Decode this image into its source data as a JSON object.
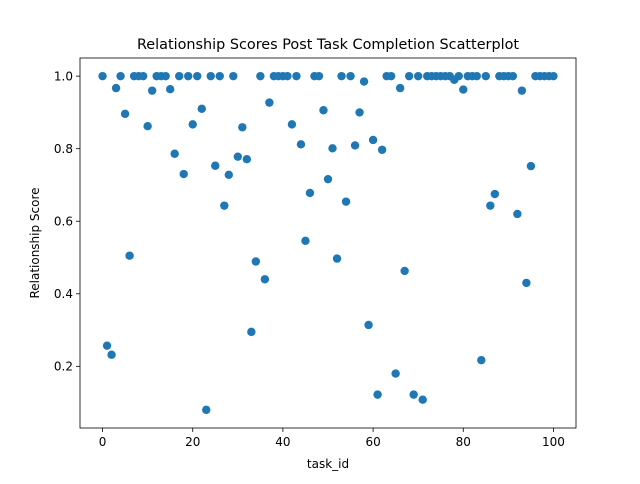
{
  "chart_data": {
    "type": "scatter",
    "title": "Relationship Scores Post Task Completion Scatterplot",
    "xlabel": "task_id",
    "ylabel": "Relationship Score",
    "xlim": [
      -5,
      105
    ],
    "ylim": [
      0.03,
      1.05
    ],
    "xticks": [
      0,
      20,
      40,
      60,
      80,
      100
    ],
    "yticks": [
      0.2,
      0.4,
      0.6,
      0.8,
      1.0
    ],
    "xtick_labels": [
      "0",
      "20",
      "40",
      "60",
      "80",
      "100"
    ],
    "ytick_labels": [
      "0.2",
      "0.4",
      "0.6",
      "0.8",
      "1.0"
    ],
    "grid": false,
    "marker_color": "#1f77b4",
    "series": [
      {
        "points": [
          [
            0,
            1.0
          ],
          [
            1,
            0.257
          ],
          [
            2,
            0.232
          ],
          [
            3,
            0.967
          ],
          [
            4,
            1.0
          ],
          [
            5,
            0.896
          ],
          [
            6,
            0.505
          ],
          [
            7,
            1.0
          ],
          [
            8,
            1.0
          ],
          [
            9,
            1.0
          ],
          [
            10,
            0.862
          ],
          [
            11,
            0.96
          ],
          [
            12,
            1.0
          ],
          [
            13,
            1.0
          ],
          [
            14,
            1.0
          ],
          [
            15,
            0.964
          ],
          [
            16,
            0.786
          ],
          [
            17,
            1.0
          ],
          [
            18,
            0.73
          ],
          [
            19,
            1.0
          ],
          [
            20,
            0.867
          ],
          [
            21,
            1.0
          ],
          [
            22,
            0.91
          ],
          [
            23,
            0.08
          ],
          [
            24,
            1.0
          ],
          [
            25,
            0.753
          ],
          [
            26,
            1.0
          ],
          [
            27,
            0.643
          ],
          [
            28,
            0.728
          ],
          [
            29,
            1.0
          ],
          [
            30,
            0.778
          ],
          [
            31,
            0.859
          ],
          [
            32,
            0.771
          ],
          [
            33,
            0.295
          ],
          [
            34,
            0.489
          ],
          [
            35,
            1.0
          ],
          [
            36,
            0.44
          ],
          [
            37,
            0.927
          ],
          [
            38,
            1.0
          ],
          [
            39,
            1.0
          ],
          [
            40,
            1.0
          ],
          [
            41,
            1.0
          ],
          [
            42,
            0.867
          ],
          [
            43,
            1.0
          ],
          [
            44,
            0.812
          ],
          [
            45,
            0.546
          ],
          [
            46,
            0.678
          ],
          [
            47,
            1.0
          ],
          [
            48,
            1.0
          ],
          [
            49,
            0.906
          ],
          [
            50,
            0.716
          ],
          [
            51,
            0.801
          ],
          [
            52,
            0.497
          ],
          [
            53,
            1.0
          ],
          [
            54,
            0.654
          ],
          [
            55,
            1.0
          ],
          [
            56,
            0.809
          ],
          [
            57,
            0.9
          ],
          [
            58,
            0.985
          ],
          [
            59,
            0.314
          ],
          [
            60,
            0.824
          ],
          [
            61,
            0.122
          ],
          [
            62,
            0.797
          ],
          [
            63,
            1.0
          ],
          [
            64,
            1.0
          ],
          [
            65,
            0.18
          ],
          [
            66,
            0.967
          ],
          [
            67,
            0.463
          ],
          [
            68,
            1.0
          ],
          [
            69,
            0.122
          ],
          [
            70,
            1.0
          ],
          [
            71,
            0.108
          ],
          [
            72,
            1.0
          ],
          [
            73,
            1.0
          ],
          [
            74,
            1.0
          ],
          [
            75,
            1.0
          ],
          [
            76,
            1.0
          ],
          [
            77,
            1.0
          ],
          [
            78,
            0.99
          ],
          [
            79,
            1.0
          ],
          [
            80,
            0.963
          ],
          [
            81,
            1.0
          ],
          [
            82,
            1.0
          ],
          [
            83,
            1.0
          ],
          [
            84,
            0.217
          ],
          [
            85,
            1.0
          ],
          [
            86,
            0.643
          ],
          [
            87,
            0.675
          ],
          [
            88,
            1.0
          ],
          [
            89,
            1.0
          ],
          [
            90,
            1.0
          ],
          [
            91,
            1.0
          ],
          [
            92,
            0.62
          ],
          [
            93,
            0.96
          ],
          [
            94,
            0.43
          ],
          [
            95,
            0.752
          ],
          [
            96,
            1.0
          ],
          [
            97,
            1.0
          ],
          [
            98,
            1.0
          ],
          [
            99,
            1.0
          ],
          [
            100,
            1.0
          ]
        ]
      }
    ]
  }
}
